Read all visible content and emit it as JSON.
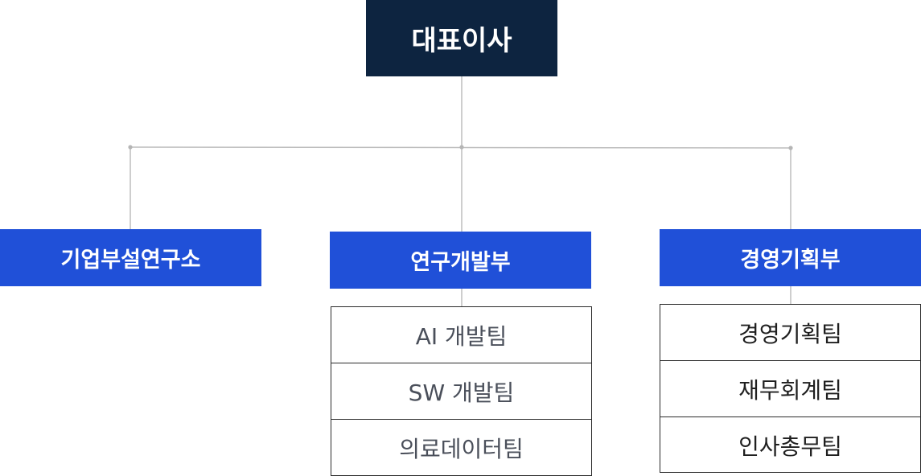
{
  "colors": {
    "ceo_fill": "#0d2440",
    "dept_fill": "#2050d8",
    "connector": "#bdbdbd",
    "team_border": "#2b2b2b"
  },
  "org": {
    "ceo": "대표이사",
    "departments": [
      {
        "name": "기업부설연구소",
        "teams": []
      },
      {
        "name": "연구개발부",
        "teams": [
          "AI 개발팀",
          "SW 개발팀",
          "의료데이터팀"
        ]
      },
      {
        "name": "경영기획부",
        "teams": [
          "경영기획팀",
          "재무회계팀",
          "인사총무팀"
        ]
      }
    ]
  }
}
